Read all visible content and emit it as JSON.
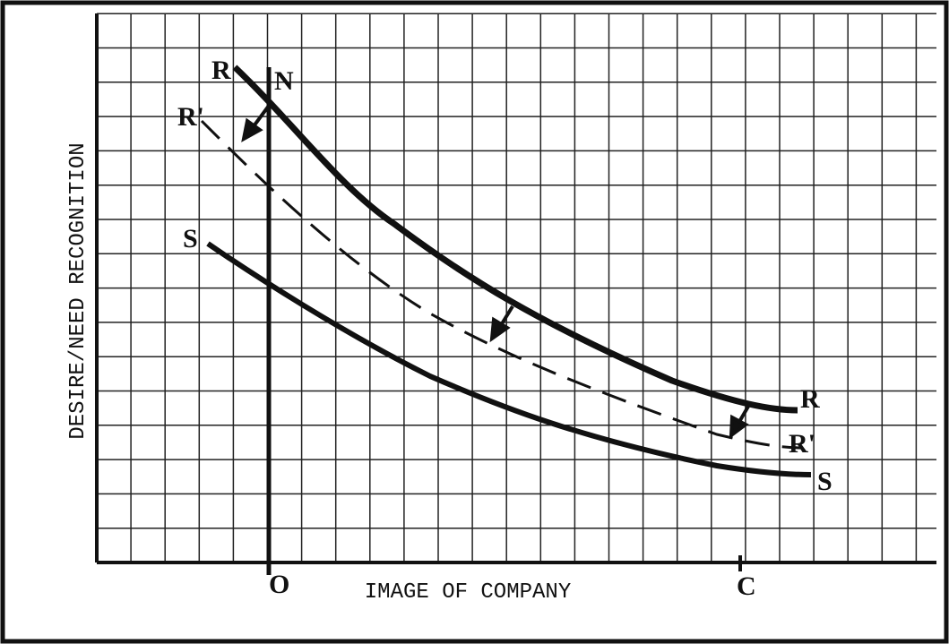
{
  "axes": {
    "y_label": "DESIRE/NEED RECOGNITION",
    "x_label": "IMAGE OF COMPANY",
    "origin": "O",
    "x_point": "C"
  },
  "curve_labels": {
    "r_start": "R",
    "n": "N",
    "r_prime_start": "R'",
    "s_start": "S",
    "r_end": "R",
    "r_prime_end": "R'",
    "s_end": "S"
  }
}
